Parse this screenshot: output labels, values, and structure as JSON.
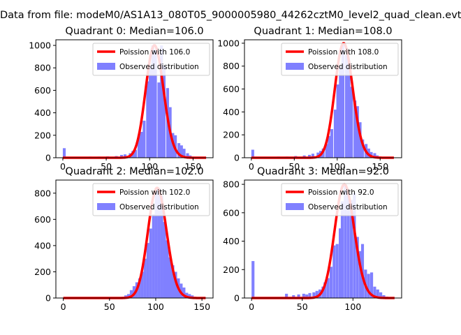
{
  "figure_title": "Data from file: modeM0/AS1A13_080T05_9000005980_44262cztM0_level2_quad_clean.evt",
  "colors": {
    "poisson_line": "#ff0000",
    "histogram": "#8080ff",
    "axes": "#000000",
    "background": "#ffffff"
  },
  "chart_data": [
    {
      "type": "bar",
      "title": "Quadrant 0: Median=106.0",
      "xlabel": "",
      "ylabel": "",
      "xlim": [
        -8,
        173
      ],
      "ylim": [
        0,
        1050
      ],
      "xticks": [
        0,
        50,
        100,
        150
      ],
      "yticks": [
        0,
        200,
        400,
        600,
        800,
        1000
      ],
      "grid": false,
      "legend_position": "top-right",
      "legend": [
        "Poission with 106.0",
        "Observed distribution"
      ],
      "poisson_mean": 106.0,
      "poisson_range": [
        0,
        165
      ],
      "series": [
        {
          "name": "Observed distribution",
          "type": "histogram",
          "bin_width": 3.3,
          "x": [
            0,
            20,
            30,
            40,
            50,
            60,
            66,
            70,
            76,
            79,
            82,
            86,
            89,
            92,
            96,
            99,
            102,
            105,
            109,
            112,
            115,
            119,
            122,
            125,
            128,
            132,
            135,
            138,
            142,
            145,
            148,
            152,
            155,
            158,
            162
          ],
          "values": [
            85,
            8,
            10,
            10,
            12,
            15,
            25,
            30,
            40,
            60,
            70,
            200,
            230,
            330,
            680,
            820,
            1000,
            960,
            670,
            1000,
            820,
            620,
            450,
            220,
            200,
            130,
            110,
            80,
            40,
            20,
            10,
            8,
            8,
            5,
            5
          ]
        },
        {
          "name": "Poission with 106.0",
          "type": "line"
        }
      ]
    },
    {
      "type": "bar",
      "title": "Quadrant 1: Median=108.0",
      "xlabel": "",
      "ylabel": "",
      "xlim": [
        -8,
        175
      ],
      "ylim": [
        0,
        1030
      ],
      "xticks": [
        0,
        50,
        100,
        150
      ],
      "yticks": [
        0,
        200,
        400,
        600,
        800,
        1000
      ],
      "grid": false,
      "legend_position": "top-right",
      "legend": [
        "Poission with 108.0",
        "Observed distribution"
      ],
      "poisson_mean": 108.0,
      "poisson_range": [
        0,
        166
      ],
      "series": [
        {
          "name": "Observed distribution",
          "type": "histogram",
          "bin_width": 3.3,
          "x": [
            0,
            20,
            30,
            40,
            50,
            60,
            66,
            70,
            76,
            79,
            82,
            86,
            89,
            92,
            96,
            99,
            102,
            105,
            109,
            112,
            115,
            119,
            122,
            125,
            128,
            132,
            135,
            138,
            142,
            145,
            148,
            152,
            155,
            158,
            162
          ],
          "values": [
            70,
            8,
            10,
            10,
            15,
            20,
            25,
            35,
            45,
            60,
            80,
            120,
            190,
            250,
            420,
            640,
            800,
            1000,
            900,
            850,
            620,
            500,
            450,
            310,
            160,
            120,
            80,
            50,
            40,
            20,
            10,
            8,
            5,
            5,
            5
          ]
        },
        {
          "name": "Poission with 108.0",
          "type": "line"
        }
      ]
    },
    {
      "type": "bar",
      "title": "Quadrant 2: Median=102.0",
      "xlabel": "",
      "ylabel": "",
      "xlim": [
        -8,
        162
      ],
      "ylim": [
        0,
        900
      ],
      "xticks": [
        0,
        50,
        100,
        150
      ],
      "yticks": [
        0,
        200,
        400,
        600,
        800
      ],
      "grid": false,
      "legend_position": "top-right",
      "legend": [
        "Poission with 102.0",
        "Observed distribution"
      ],
      "poisson_mean": 102.0,
      "poisson_range": [
        0,
        154
      ],
      "series": [
        {
          "name": "Observed distribution",
          "type": "histogram",
          "bin_width": 3.1,
          "x": [
            0,
            20,
            40,
            55,
            63,
            66,
            69,
            72,
            75,
            78,
            81,
            84,
            87,
            90,
            93,
            96,
            99,
            102,
            105,
            108,
            111,
            114,
            117,
            120,
            123,
            126,
            129,
            132,
            135,
            138,
            141,
            145,
            150
          ],
          "values": [
            5,
            3,
            4,
            5,
            10,
            20,
            30,
            60,
            90,
            120,
            150,
            200,
            300,
            420,
            530,
            640,
            830,
            840,
            780,
            580,
            440,
            310,
            250,
            200,
            150,
            110,
            80,
            40,
            30,
            20,
            10,
            5,
            5
          ]
        },
        {
          "name": "Poission with 102.0",
          "type": "line"
        }
      ]
    },
    {
      "type": "bar",
      "title": "Quadrant 3: Median=92.0",
      "xlabel": "",
      "ylabel": "",
      "xlim": [
        -7,
        148
      ],
      "ylim": [
        0,
        830
      ],
      "xticks": [
        0,
        50,
        100
      ],
      "yticks": [
        0,
        200,
        400,
        600,
        800
      ],
      "grid": false,
      "legend_position": "top-right",
      "legend": [
        "Poission with 92.0",
        "Observed distribution"
      ],
      "poisson_mean": 92.0,
      "poisson_range": [
        0,
        141
      ],
      "series": [
        {
          "name": "Observed distribution",
          "type": "histogram",
          "bin_width": 2.85,
          "x": [
            0,
            33,
            40,
            45,
            50,
            53,
            56,
            60,
            63,
            66,
            69,
            71,
            74,
            77,
            80,
            83,
            86,
            88,
            91,
            94,
            97,
            100,
            103,
            106,
            108,
            111,
            114,
            117,
            120,
            123,
            126,
            129,
            132
          ],
          "values": [
            260,
            30,
            20,
            25,
            30,
            25,
            35,
            40,
            50,
            60,
            80,
            110,
            140,
            220,
            370,
            380,
            490,
            680,
            800,
            750,
            690,
            740,
            430,
            330,
            380,
            200,
            170,
            180,
            80,
            60,
            40,
            20,
            10
          ]
        },
        {
          "name": "Poission with 92.0",
          "type": "line"
        }
      ]
    }
  ]
}
